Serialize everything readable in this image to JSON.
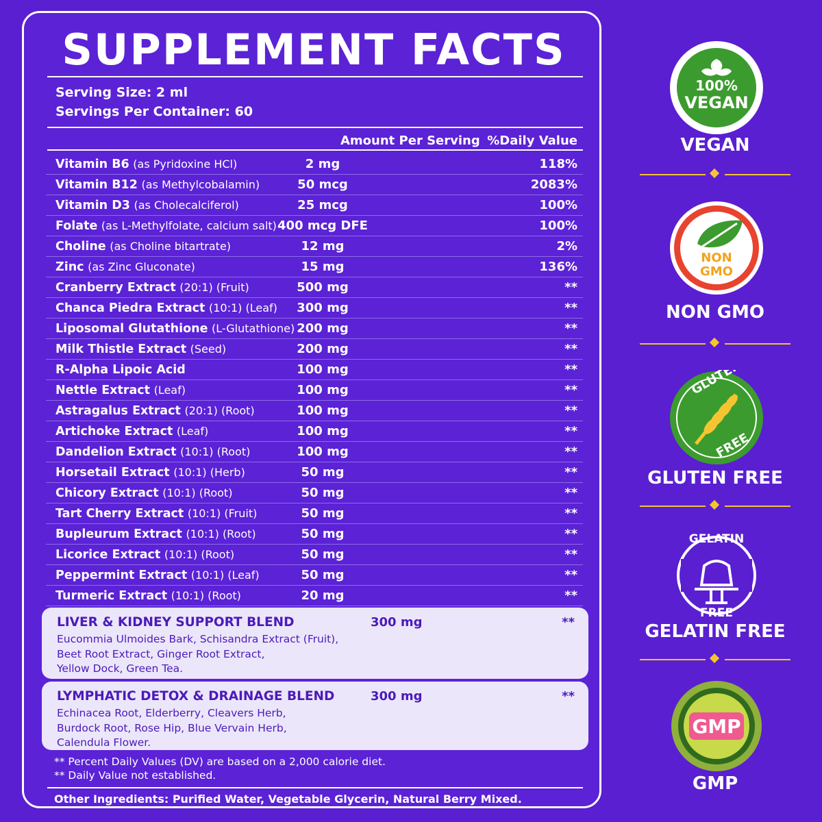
{
  "title": "SUPPLEMENT FACTS",
  "serving_size": "Serving Size: 2 ml",
  "servings_per_container": "Servings Per Container: 60",
  "headers": {
    "amount": "Amount Per Serving",
    "dv": "%Daily Value"
  },
  "rows": [
    {
      "name": "Vitamin B6",
      "note": "(as Pyridoxine HCl)",
      "amount": "2 mg",
      "dv": "118%"
    },
    {
      "name": "Vitamin B12",
      "note": "(as Methylcobalamin)",
      "amount": "50 mcg",
      "dv": "2083%"
    },
    {
      "name": "Vitamin D3",
      "note": "(as Cholecalciferol)",
      "amount": "25 mcg",
      "dv": "100%"
    },
    {
      "name": "Folate",
      "note": "(as L-Methylfolate, calcium salt)",
      "amount": "400 mcg DFE",
      "dv": "100%"
    },
    {
      "name": "Choline",
      "note": "(as Choline bitartrate)",
      "amount": "12 mg",
      "dv": "2%"
    },
    {
      "name": "Zinc",
      "note": "(as Zinc Gluconate)",
      "amount": "15 mg",
      "dv": "136%"
    },
    {
      "name": "Cranberry Extract",
      "note": "(20:1) (Fruit)",
      "amount": "500 mg",
      "dv": "**"
    },
    {
      "name": "Chanca Piedra Extract",
      "note": "(10:1) (Leaf)",
      "amount": "300 mg",
      "dv": "**"
    },
    {
      "name": "Liposomal Glutathione",
      "note": "(L-Glutathione)",
      "amount": "200 mg",
      "dv": "**"
    },
    {
      "name": "Milk Thistle Extract",
      "note": "(Seed)",
      "amount": "200 mg",
      "dv": "**"
    },
    {
      "name": "R-Alpha Lipoic Acid",
      "note": "",
      "amount": "100 mg",
      "dv": "**"
    },
    {
      "name": "Nettle Extract",
      "note": "(Leaf)",
      "amount": "100 mg",
      "dv": "**"
    },
    {
      "name": "Astragalus Extract",
      "note": "(20:1) (Root)",
      "amount": "100 mg",
      "dv": "**"
    },
    {
      "name": "Artichoke Extract",
      "note": "(Leaf)",
      "amount": "100 mg",
      "dv": "**"
    },
    {
      "name": "Dandelion Extract",
      "note": "(10:1) (Root)",
      "amount": "100 mg",
      "dv": "**"
    },
    {
      "name": "Horsetail Extract",
      "note": "(10:1) (Herb)",
      "amount": "50 mg",
      "dv": "**"
    },
    {
      "name": "Chicory Extract",
      "note": "(10:1) (Root)",
      "amount": "50 mg",
      "dv": "**"
    },
    {
      "name": "Tart Cherry Extract",
      "note": "(10:1) (Fruit)",
      "amount": "50 mg",
      "dv": "**"
    },
    {
      "name": "Bupleurum Extract",
      "note": "(10:1) (Root)",
      "amount": "50 mg",
      "dv": "**"
    },
    {
      "name": "Licorice Extract",
      "note": "(10:1) (Root)",
      "amount": "50 mg",
      "dv": "**"
    },
    {
      "name": "Peppermint Extract",
      "note": "(10:1) (Leaf)",
      "amount": "50 mg",
      "dv": "**"
    },
    {
      "name": "Turmeric Extract",
      "note": "(10:1) (Root)",
      "amount": "20 mg",
      "dv": "**"
    }
  ],
  "blends": [
    {
      "name": "LIVER & KIDNEY SUPPORT BLEND",
      "amount": "300 mg",
      "dv": "**",
      "lines": [
        "Eucommia Ulmoides Bark, Schisandra Extract (Fruit),",
        "Beet Root Extract, Ginger Root Extract,",
        "Yellow Dock, Green Tea."
      ]
    },
    {
      "name": "LYMPHATIC DETOX & DRAINAGE BLEND",
      "amount": "300 mg",
      "dv": "**",
      "lines": [
        "Echinacea Root, Elderberry, Cleavers Herb,",
        "Burdock Root, Rose Hip, Blue Vervain Herb,",
        "Calendula Flower."
      ]
    }
  ],
  "footnotes": [
    "** Percent Daily Values (DV) are based on a 2,000 calorie diet.",
    "** Daily Value not established."
  ],
  "other_ingredients": "Other Ingredients: Purified Water, Vegetable Glycerin, Natural Berry Mixed.",
  "badges": [
    {
      "label": "VEGAN",
      "icon_text": [
        "100%",
        "VEGAN"
      ],
      "icon": "vegan-leaf-icon"
    },
    {
      "label": "NON GMO",
      "icon_text": [
        "NON",
        "GMO"
      ],
      "icon": "non-gmo-leaf-icon"
    },
    {
      "label": "GLUTEN FREE",
      "icon_text": [
        "GLUTEN",
        "FREE"
      ],
      "icon": "wheat-icon"
    },
    {
      "label": "GELATIN FREE",
      "icon_text": [
        "GELATIN",
        "FREE"
      ],
      "icon": "gelatin-icon"
    },
    {
      "label": "GMP",
      "icon_text": [
        "GMP"
      ],
      "icon": "gmp-seal-icon"
    }
  ],
  "colors": {
    "background": "#5a1fd1",
    "accent": "#f5c531",
    "green": "#3c9b2e",
    "blend_bg": "#ece6fb"
  }
}
